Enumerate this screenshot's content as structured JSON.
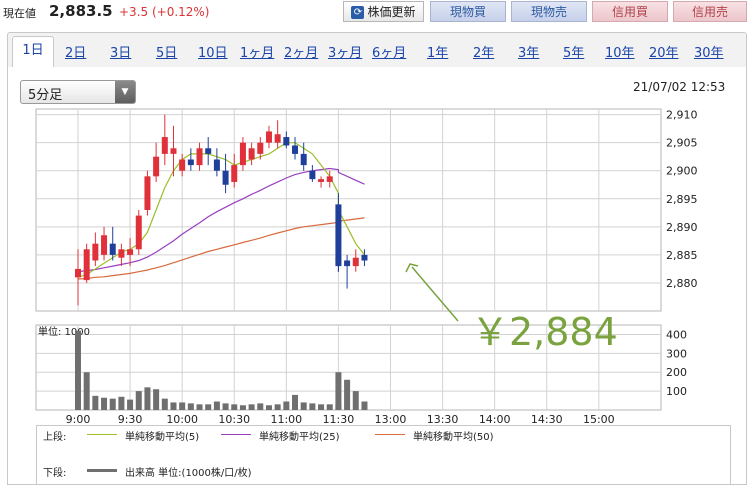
{
  "header": {
    "current_label": "現在値",
    "price": "2,883.5",
    "change": "+3.5 (+0.12%)",
    "update_label": "株価更新",
    "buttons": [
      "現物買",
      "現物売",
      "信用買",
      "信用売"
    ]
  },
  "tabs": [
    "1日",
    "2日",
    "3日",
    "5日",
    "10日",
    "1ヶ月",
    "2ヶ月",
    "3ヶ月",
    "6ヶ月",
    "1年",
    "2年",
    "3年",
    "5年",
    "10年",
    "20年",
    "30年"
  ],
  "active_tab": "1日",
  "interval_select": {
    "value": "5分足"
  },
  "timestamp": "21/07/02 12:53",
  "annotation": "￥2,884",
  "volume_unit_label": "単位: 1000",
  "legend": {
    "upper_label": "上段:",
    "lower_label": "下段:",
    "ma5": "単純移動平均(5)",
    "ma25": "単純移動平均(25)",
    "ma50": "単純移動平均(50)",
    "volume": "出来高 単位:(1000株/口/枚)"
  },
  "colors": {
    "up": "#e0313a",
    "down": "#1f3f9a",
    "ma5": "#9bbf2a",
    "ma25": "#9a3fc2",
    "ma50": "#d86a3c",
    "volume": "#6f6f6f",
    "annotation": "#7aa33f"
  },
  "chart_data": [
    {
      "type": "candlestick",
      "y_ticks": [
        "2,910",
        "2,905",
        "2,900",
        "2,895",
        "2,890",
        "2,885",
        "2,880"
      ],
      "ylim": [
        2875,
        2911
      ],
      "x_ticks": [
        "9:00",
        "9:30",
        "10:00",
        "10:30",
        "11:00",
        "11:30",
        "13:00",
        "13:30",
        "14:00",
        "14:30",
        "15:00"
      ],
      "candles": [
        {
          "t": "9:00",
          "o": 2881,
          "h": 2886,
          "l": 2876,
          "c": 2882.5
        },
        {
          "t": "9:05",
          "o": 2880.5,
          "h": 2887,
          "l": 2880,
          "c": 2886
        },
        {
          "t": "9:10",
          "o": 2884,
          "h": 2889,
          "l": 2883,
          "c": 2887
        },
        {
          "t": "9:15",
          "o": 2885,
          "h": 2890,
          "l": 2884,
          "c": 2888.5
        },
        {
          "t": "9:20",
          "o": 2887,
          "h": 2890,
          "l": 2884,
          "c": 2885
        },
        {
          "t": "9:25",
          "o": 2884.5,
          "h": 2887,
          "l": 2883,
          "c": 2886
        },
        {
          "t": "9:30",
          "o": 2885,
          "h": 2888,
          "l": 2883,
          "c": 2886
        },
        {
          "t": "9:35",
          "o": 2886,
          "h": 2893,
          "l": 2885,
          "c": 2892
        },
        {
          "t": "9:40",
          "o": 2893,
          "h": 2900,
          "l": 2892,
          "c": 2899
        },
        {
          "t": "9:45",
          "o": 2899,
          "h": 2905,
          "l": 2898,
          "c": 2902.5
        },
        {
          "t": "9:50",
          "o": 2903,
          "h": 2910,
          "l": 2901,
          "c": 2906
        },
        {
          "t": "9:55",
          "o": 2903,
          "h": 2908,
          "l": 2899,
          "c": 2904
        },
        {
          "t": "10:00",
          "o": 2900,
          "h": 2903,
          "l": 2899,
          "c": 2902
        },
        {
          "t": "10:05",
          "o": 2902,
          "h": 2904,
          "l": 2900,
          "c": 2901
        },
        {
          "t": "10:10",
          "o": 2901,
          "h": 2905,
          "l": 2900,
          "c": 2904
        },
        {
          "t": "10:15",
          "o": 2904,
          "h": 2906,
          "l": 2901,
          "c": 2903
        },
        {
          "t": "10:20",
          "o": 2902,
          "h": 2904,
          "l": 2899,
          "c": 2900
        },
        {
          "t": "10:25",
          "o": 2900,
          "h": 2903,
          "l": 2896,
          "c": 2897.5
        },
        {
          "t": "10:30",
          "o": 2898,
          "h": 2903,
          "l": 2897,
          "c": 2901
        },
        {
          "t": "10:35",
          "o": 2901,
          "h": 2906,
          "l": 2900,
          "c": 2905
        },
        {
          "t": "10:40",
          "o": 2902,
          "h": 2905,
          "l": 2901,
          "c": 2904
        },
        {
          "t": "10:45",
          "o": 2903,
          "h": 2906,
          "l": 2902,
          "c": 2905
        },
        {
          "t": "10:50",
          "o": 2905,
          "h": 2908,
          "l": 2904,
          "c": 2907
        },
        {
          "t": "10:55",
          "o": 2905,
          "h": 2909,
          "l": 2904,
          "c": 2906.5
        },
        {
          "t": "11:00",
          "o": 2906,
          "h": 2907,
          "l": 2904,
          "c": 2904.5
        },
        {
          "t": "11:05",
          "o": 2904.5,
          "h": 2906,
          "l": 2902,
          "c": 2903
        },
        {
          "t": "11:10",
          "o": 2903,
          "h": 2905,
          "l": 2900,
          "c": 2901
        },
        {
          "t": "11:15",
          "o": 2900,
          "h": 2901,
          "l": 2898,
          "c": 2898.5
        },
        {
          "t": "11:20",
          "o": 2898,
          "h": 2899,
          "l": 2897,
          "c": 2898.5
        },
        {
          "t": "11:25",
          "o": 2898,
          "h": 2900,
          "l": 2897,
          "c": 2899
        },
        {
          "t": "11:30",
          "o": 2894,
          "h": 2896,
          "l": 2882,
          "c": 2884
        },
        {
          "t": "12:30",
          "o": 2884.5,
          "h": 2886,
          "l": 2882,
          "c": 2883
        },
        {
          "t": "12:35",
          "o": 2884,
          "h": 2885,
          "l": 2879,
          "c": 2883
        },
        {
          "t": "12:40",
          "o": 2883,
          "h": 2886,
          "l": 2882,
          "c": 2884.5
        },
        {
          "t": "12:45",
          "o": 2885,
          "h": 2886,
          "l": 2883,
          "c": 2884
        }
      ],
      "ma5": [
        2881,
        2881.5,
        2882.5,
        2883.5,
        2884.5,
        2885.5,
        2886,
        2887,
        2889,
        2893,
        2897,
        2900,
        2902,
        2903,
        2903,
        2903,
        2902.5,
        2902,
        2901,
        2901.5,
        2902,
        2902.5,
        2903,
        2904,
        2905,
        2905,
        2904,
        2903,
        2901,
        2899,
        2896,
        2893,
        2890,
        2887,
        2885
      ],
      "ma25": [
        2882,
        2882.2,
        2882.4,
        2882.7,
        2883,
        2883.3,
        2883.6,
        2884,
        2884.6,
        2885.5,
        2886.5,
        2887.5,
        2888.7,
        2889.7,
        2890.7,
        2891.8,
        2892.7,
        2893.5,
        2894.3,
        2895,
        2895.8,
        2896.5,
        2897.3,
        2898,
        2898.7,
        2899.3,
        2899.7,
        2900,
        2900.2,
        2900.4,
        2900.2,
        2899.7,
        2899,
        2898.3,
        2897.6
      ],
      "ma50": [
        2880.7,
        2880.8,
        2881,
        2881.1,
        2881.3,
        2881.5,
        2881.7,
        2882,
        2882.3,
        2882.7,
        2883.1,
        2883.6,
        2884.1,
        2884.6,
        2885.1,
        2885.6,
        2886,
        2886.4,
        2886.8,
        2887.2,
        2887.6,
        2888,
        2888.5,
        2888.9,
        2889.3,
        2889.7,
        2890,
        2890.2,
        2890.4,
        2890.6,
        2890.8,
        2891,
        2891.2,
        2891.4,
        2891.6
      ]
    },
    {
      "type": "bar",
      "y_ticks": [
        "400",
        "300",
        "200",
        "100"
      ],
      "ylim": [
        0,
        450
      ],
      "unit": "1000",
      "values": [
        420,
        200,
        75,
        65,
        60,
        70,
        55,
        100,
        120,
        110,
        60,
        40,
        40,
        35,
        30,
        30,
        45,
        35,
        30,
        25,
        30,
        35,
        25,
        30,
        45,
        80,
        40,
        35,
        30,
        30,
        30,
        200,
        160,
        100,
        45
      ]
    }
  ]
}
